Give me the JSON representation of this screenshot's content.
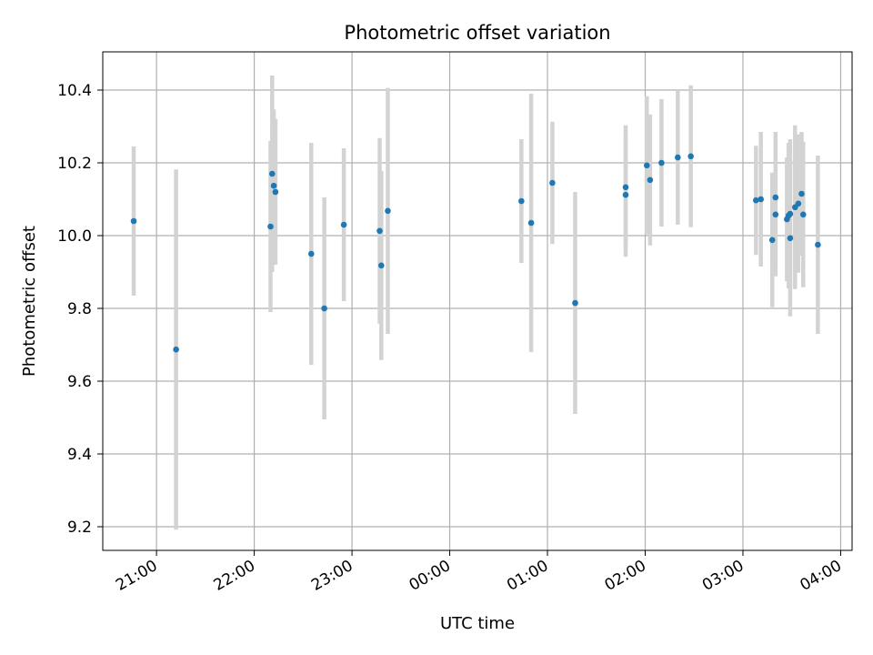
{
  "chart_data": {
    "type": "scatter",
    "title": "Photometric offset variation",
    "xlabel": "UTC time",
    "ylabel": "Photometric offset",
    "x_axis_kind": "time",
    "xlim": [
      "20:27",
      "04:07"
    ],
    "ylim": [
      9.135,
      10.505
    ],
    "grid": true,
    "x_ticks": [
      {
        "value": "21:00",
        "label": "21:00"
      },
      {
        "value": "22:00",
        "label": "22:00"
      },
      {
        "value": "23:00",
        "label": "23:00"
      },
      {
        "value": "00:00",
        "label": "00:00"
      },
      {
        "value": "01:00",
        "label": "01:00"
      },
      {
        "value": "02:00",
        "label": "02:00"
      },
      {
        "value": "03:00",
        "label": "03:00"
      },
      {
        "value": "04:00",
        "label": "04:00"
      }
    ],
    "y_ticks": [
      {
        "value": 9.2,
        "label": "9.2"
      },
      {
        "value": 9.4,
        "label": "9.4"
      },
      {
        "value": 9.6,
        "label": "9.6"
      },
      {
        "value": 9.8,
        "label": "9.8"
      },
      {
        "value": 10.0,
        "label": "10.0"
      },
      {
        "value": 10.2,
        "label": "10.2"
      },
      {
        "value": 10.4,
        "label": "10.4"
      }
    ],
    "colors": {
      "points": "#1f77b4",
      "errorbars": "#d3d3d3",
      "grid": "#b0b0b0",
      "axes": "#000000"
    },
    "points": [
      {
        "x": "20:46",
        "y": 10.04,
        "yerr": 0.205
      },
      {
        "x": "21:12",
        "y": 9.687,
        "yerr": 0.495
      },
      {
        "x": "22:10",
        "y": 10.025,
        "yerr": 0.235
      },
      {
        "x": "22:11",
        "y": 10.17,
        "yerr": 0.27
      },
      {
        "x": "22:12",
        "y": 10.137,
        "yerr": 0.21
      },
      {
        "x": "22:13",
        "y": 10.12,
        "yerr": 0.2
      },
      {
        "x": "22:35",
        "y": 9.95,
        "yerr": 0.305
      },
      {
        "x": "22:43",
        "y": 9.8,
        "yerr": 0.305
      },
      {
        "x": "22:55",
        "y": 10.03,
        "yerr": 0.21
      },
      {
        "x": "23:17",
        "y": 10.013,
        "yerr": 0.255
      },
      {
        "x": "23:18",
        "y": 9.918,
        "yerr": 0.26
      },
      {
        "x": "23:22",
        "y": 10.068,
        "yerr": 0.338
      },
      {
        "x": "00:44",
        "y": 10.095,
        "yerr": 0.17
      },
      {
        "x": "00:50",
        "y": 10.035,
        "yerr": 0.355
      },
      {
        "x": "01:03",
        "y": 10.145,
        "yerr": 0.168
      },
      {
        "x": "01:17",
        "y": 9.815,
        "yerr": 0.305
      },
      {
        "x": "01:48",
        "y": 10.133,
        "yerr": 0.17
      },
      {
        "x": "01:48",
        "y": 10.112,
        "yerr": 0.17
      },
      {
        "x": "02:01",
        "y": 10.193,
        "yerr": 0.19
      },
      {
        "x": "02:03",
        "y": 10.153,
        "yerr": 0.18
      },
      {
        "x": "02:10",
        "y": 10.2,
        "yerr": 0.175
      },
      {
        "x": "02:20",
        "y": 10.215,
        "yerr": 0.185
      },
      {
        "x": "02:28",
        "y": 10.218,
        "yerr": 0.195
      },
      {
        "x": "03:08",
        "y": 10.097,
        "yerr": 0.15
      },
      {
        "x": "03:11",
        "y": 10.1,
        "yerr": 0.185
      },
      {
        "x": "03:18",
        "y": 9.988,
        "yerr": 0.185
      },
      {
        "x": "03:20",
        "y": 10.105,
        "yerr": 0.18
      },
      {
        "x": "03:20",
        "y": 10.058,
        "yerr": 0.17
      },
      {
        "x": "03:27",
        "y": 10.045,
        "yerr": 0.17
      },
      {
        "x": "03:28",
        "y": 10.055,
        "yerr": 0.2
      },
      {
        "x": "03:29",
        "y": 9.993,
        "yerr": 0.215
      },
      {
        "x": "03:29",
        "y": 10.06,
        "yerr": 0.205
      },
      {
        "x": "03:32",
        "y": 10.078,
        "yerr": 0.225
      },
      {
        "x": "03:34",
        "y": 10.088,
        "yerr": 0.19
      },
      {
        "x": "03:36",
        "y": 10.115,
        "yerr": 0.17
      },
      {
        "x": "03:37",
        "y": 10.058,
        "yerr": 0.2
      },
      {
        "x": "03:46",
        "y": 9.975,
        "yerr": 0.245
      }
    ]
  }
}
